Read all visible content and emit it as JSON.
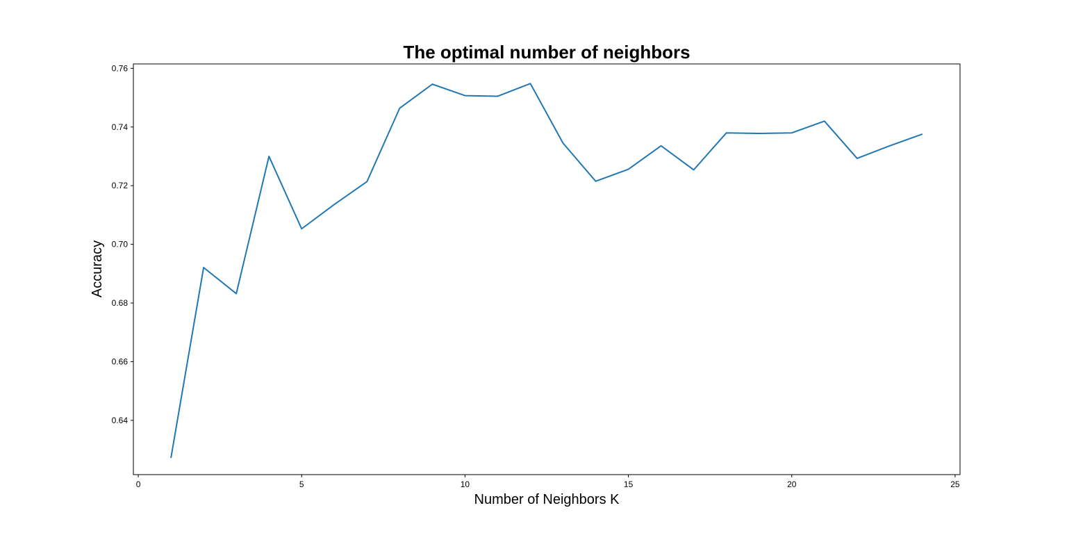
{
  "chart_data": {
    "type": "line",
    "title": "The optimal number of neighbors",
    "xlabel": "Number of Neighbors K",
    "ylabel": "Accuracy",
    "xlim": [
      -0.15,
      25.15
    ],
    "ylim": [
      0.6215,
      0.7615
    ],
    "xticks": [
      0,
      5,
      10,
      15,
      20,
      25
    ],
    "yticks": [
      0.64,
      0.66,
      0.68,
      0.7,
      0.72,
      0.74,
      0.76
    ],
    "ytick_labels": [
      "0.64",
      "0.66",
      "0.68",
      "0.70",
      "0.72",
      "0.74",
      "0.76"
    ],
    "grid": false,
    "line_color": "#1f77b4",
    "series": [
      {
        "x": [
          1,
          2,
          3,
          4,
          5,
          6,
          7,
          8,
          9,
          10,
          11,
          12,
          13,
          14,
          15,
          16,
          17,
          18,
          19,
          20,
          21,
          22,
          23,
          24
        ],
        "y": [
          0.6272,
          0.6921,
          0.6832,
          0.73,
          0.7053,
          0.7136,
          0.7214,
          0.7464,
          0.7546,
          0.7507,
          0.7505,
          0.7548,
          0.7345,
          0.7215,
          0.7256,
          0.7336,
          0.7254,
          0.738,
          0.7378,
          0.738,
          0.742,
          0.7293,
          0.7336,
          0.7376
        ]
      }
    ]
  }
}
